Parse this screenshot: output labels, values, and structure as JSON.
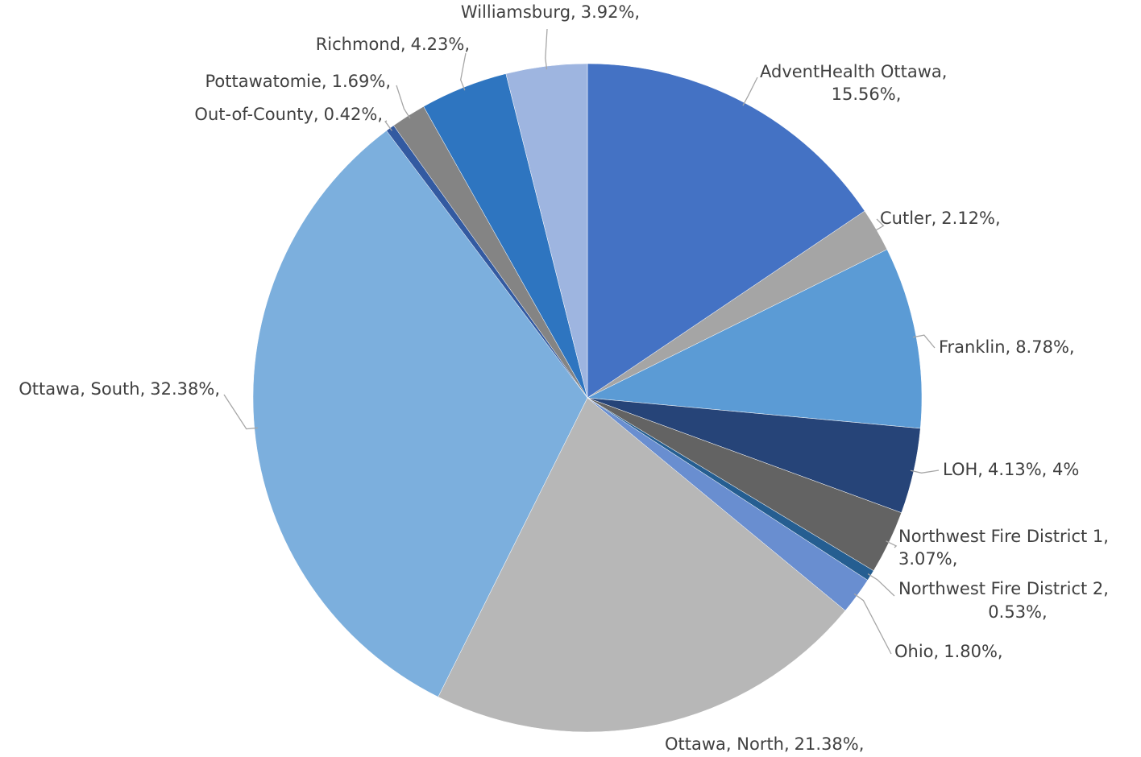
{
  "chart_data": {
    "type": "pie",
    "categories": [
      "AdventHealth Ottawa,",
      "Cutler,",
      "Franklin,",
      "LOH,",
      "Northwest Fire District 1,",
      "Northwest Fire District 2,",
      "Ohio,",
      "Ottawa, North,",
      "Ottawa, South,",
      "Out-of-County,",
      "Pottawatomie,",
      "Richmond,",
      "Williamsburg,"
    ],
    "values": [
      15.56,
      2.12,
      8.78,
      4.13,
      3.07,
      0.53,
      1.8,
      21.38,
      32.38,
      0.42,
      1.69,
      4.23,
      3.92
    ],
    "value_labels": [
      "15.56%,",
      "2.12%,",
      "8.78%,",
      "4.13%, 4%",
      "3.07%,",
      "0.53%,",
      "1.80%,",
      "21.38%,",
      "32.38%,",
      "0.42%,",
      "1.69%,",
      "4.23%,",
      "3.92%,"
    ],
    "colors": [
      "#4472c4",
      "#a5a5a5",
      "#5b9bd5",
      "#264478",
      "#636363",
      "#255e91",
      "#698ed0",
      "#b7b7b7",
      "#7cafdd",
      "#335aa1",
      "#848484",
      "#2e75c0",
      "#9eb5e0"
    ]
  }
}
